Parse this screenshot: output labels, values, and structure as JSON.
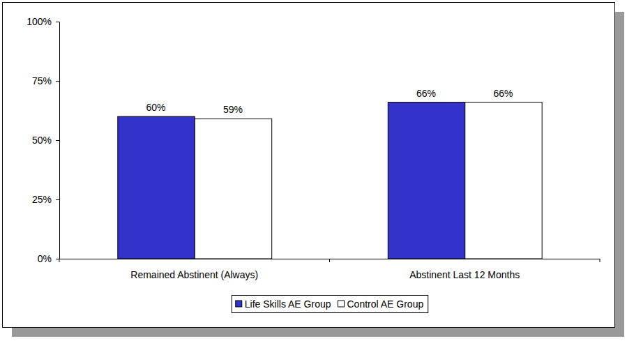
{
  "chart_data": {
    "type": "bar",
    "categories": [
      "Remained Abstinent (Always)",
      "Abstinent Last 12 Months"
    ],
    "series": [
      {
        "name": "Life Skills AE Group",
        "color": "#3333cc",
        "values": [
          60,
          66
        ],
        "value_labels": [
          "60%",
          "66%"
        ]
      },
      {
        "name": "Control AE Group",
        "color": "#ffffff",
        "values": [
          59,
          66
        ],
        "value_labels": [
          "59%",
          "66%"
        ]
      }
    ],
    "ylim": [
      0,
      100
    ],
    "yticks": [
      {
        "value": 0,
        "label": "0%"
      },
      {
        "value": 25,
        "label": "25%"
      },
      {
        "value": 50,
        "label": "50%"
      },
      {
        "value": 75,
        "label": "75%"
      },
      {
        "value": 100,
        "label": "100%"
      }
    ],
    "data_labels": true,
    "legend": "bottom",
    "grid": false
  }
}
